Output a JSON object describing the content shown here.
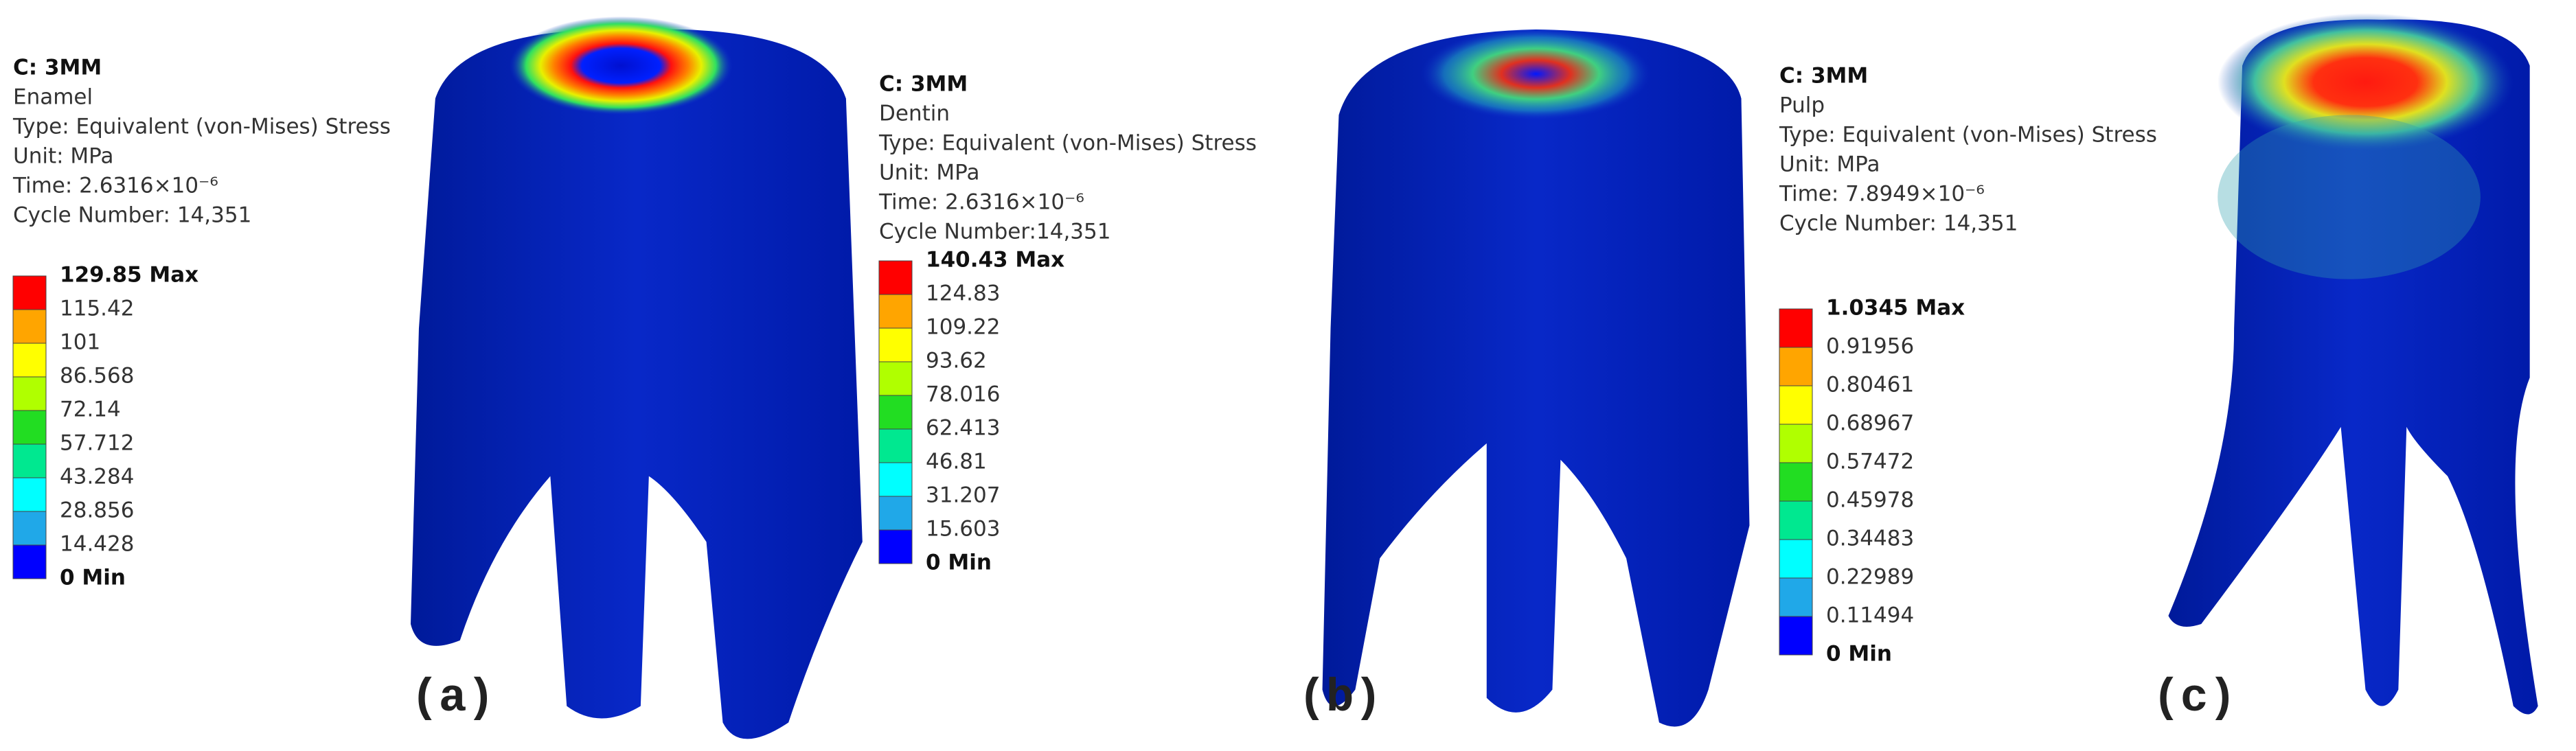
{
  "panels": [
    {
      "label": "(a)",
      "title": "C: 3MM",
      "material": "Enamel",
      "type": "Type: Equivalent (von-Mises) Stress",
      "unit": "Unit: MPa",
      "time": "Time: 2.6316×10⁻⁶",
      "cycle": "Cycle Number: 14,351",
      "legend": [
        "129.85 Max",
        "115.42",
        "101",
        "86.568",
        "72.14",
        "57.712",
        "43.284",
        "28.856",
        "14.428",
        "0 Min"
      ]
    },
    {
      "label": "(b)",
      "title": "C: 3MM",
      "material": "Dentin",
      "type": "Type: Equivalent (von-Mises) Stress",
      "unit": "Unit: MPa",
      "time": "Time: 2.6316×10⁻⁶",
      "cycle": "Cycle Number:14,351",
      "legend": [
        "140.43 Max",
        "124.83",
        "109.22",
        "93.62",
        "78.016",
        "62.413",
        "46.81",
        "31.207",
        "15.603",
        "0 Min"
      ]
    },
    {
      "label": "(c)",
      "title": "C: 3MM",
      "material": "Pulp",
      "type": "Type: Equivalent (von-Mises) Stress",
      "unit": "Unit: MPa",
      "time": "Time: 7.8949×10⁻⁶",
      "cycle": "Cycle Number: 14,351",
      "legend": [
        "1.0345 Max",
        "0.91956",
        "0.80461",
        "0.68967",
        "0.57472",
        "0.45978",
        "0.34483",
        "0.22989",
        "0.11494",
        "0 Min"
      ]
    }
  ]
}
